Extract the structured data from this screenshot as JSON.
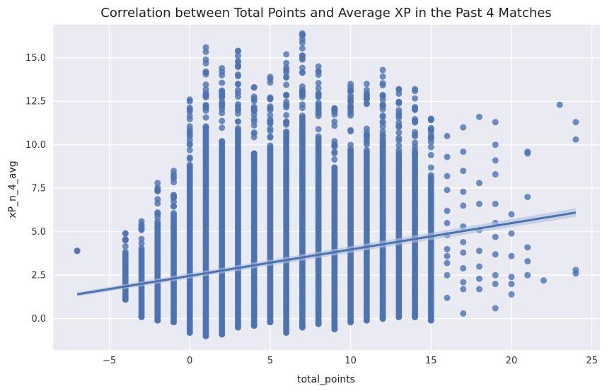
{
  "chart_data": {
    "type": "scatter",
    "title": "Correlation between Total Points and Average XP in the Past 4 Matches",
    "xlabel": "total_points",
    "ylabel": "xP_n_4_avg",
    "xlim": [
      -8.5,
      25.5
    ],
    "ylim": [
      -1.8,
      16.9
    ],
    "xticks": [
      -5,
      0,
      5,
      10,
      15,
      20,
      25
    ],
    "xtick_labels": [
      "−5",
      "0",
      "5",
      "10",
      "15",
      "20",
      "25"
    ],
    "yticks": [
      0.0,
      2.5,
      5.0,
      7.5,
      10.0,
      12.5,
      15.0
    ],
    "ytick_labels": [
      "0.0",
      "2.5",
      "5.0",
      "7.5",
      "10.0",
      "12.5",
      "15.0"
    ],
    "grid": true,
    "colors": {
      "background": "#EAEAF2",
      "grid": "#FFFFFF",
      "points": "#4C72B0",
      "regression_line": "#4C72B0",
      "ci_band": "#AFC0DE"
    },
    "regression": {
      "x": [
        -7,
        24
      ],
      "y": [
        1.4,
        6.1
      ]
    },
    "column_ranges": [
      {
        "x": -7,
        "min": 3.9,
        "max": 3.9
      },
      {
        "x": -4,
        "min": 1.1,
        "max": 4.9
      },
      {
        "x": -3,
        "min": 0.1,
        "max": 5.6
      },
      {
        "x": -2,
        "min": -0.1,
        "max": 7.8
      },
      {
        "x": -1,
        "min": -0.2,
        "max": 8.5
      },
      {
        "x": 0,
        "min": -0.8,
        "max": 12.6
      },
      {
        "x": 1,
        "min": -1.0,
        "max": 15.6
      },
      {
        "x": 2,
        "min": -0.9,
        "max": 14.4
      },
      {
        "x": 3,
        "min": -0.5,
        "max": 15.4
      },
      {
        "x": 4,
        "min": -0.4,
        "max": 13.3
      },
      {
        "x": 5,
        "min": -0.2,
        "max": 13.9
      },
      {
        "x": 6,
        "min": -0.8,
        "max": 15.2
      },
      {
        "x": 7,
        "min": -0.5,
        "max": 16.4
      },
      {
        "x": 8,
        "min": -0.3,
        "max": 14.5
      },
      {
        "x": 9,
        "min": -0.6,
        "max": 12.1
      },
      {
        "x": 10,
        "min": -0.2,
        "max": 13.5
      },
      {
        "x": 11,
        "min": -0.1,
        "max": 13.5
      },
      {
        "x": 12,
        "min": 0.0,
        "max": 14.3
      },
      {
        "x": 13,
        "min": 0.1,
        "max": 13.2
      },
      {
        "x": 14,
        "min": 0.1,
        "max": 13.2
      },
      {
        "x": 15,
        "min": -0.1,
        "max": 11.5
      }
    ],
    "sparse_points": [
      {
        "x": 16,
        "y": 10.5
      },
      {
        "x": 16,
        "y": 9.3
      },
      {
        "x": 16,
        "y": 8.2
      },
      {
        "x": 16,
        "y": 7.4
      },
      {
        "x": 16,
        "y": 6.2
      },
      {
        "x": 16,
        "y": 5.5
      },
      {
        "x": 16,
        "y": 4.8
      },
      {
        "x": 16,
        "y": 4.0
      },
      {
        "x": 16,
        "y": 3.2
      },
      {
        "x": 16,
        "y": 2.5
      },
      {
        "x": 16,
        "y": 1.2
      },
      {
        "x": 16,
        "y": 3.6
      },
      {
        "x": 17,
        "y": 11.0
      },
      {
        "x": 17,
        "y": 9.6
      },
      {
        "x": 17,
        "y": 8.5
      },
      {
        "x": 17,
        "y": 7.3
      },
      {
        "x": 17,
        "y": 6.5
      },
      {
        "x": 17,
        "y": 5.3
      },
      {
        "x": 17,
        "y": 4.4
      },
      {
        "x": 17,
        "y": 3.8
      },
      {
        "x": 17,
        "y": 2.9
      },
      {
        "x": 17,
        "y": 1.7
      },
      {
        "x": 17,
        "y": 0.3
      },
      {
        "x": 17,
        "y": 2.1
      },
      {
        "x": 18,
        "y": 11.6
      },
      {
        "x": 18,
        "y": 7.8
      },
      {
        "x": 18,
        "y": 6.6
      },
      {
        "x": 18,
        "y": 5.1
      },
      {
        "x": 18,
        "y": 3.9
      },
      {
        "x": 18,
        "y": 3.0
      },
      {
        "x": 18,
        "y": 2.3
      },
      {
        "x": 18,
        "y": 1.7
      },
      {
        "x": 19,
        "y": 11.3
      },
      {
        "x": 19,
        "y": 10.0
      },
      {
        "x": 19,
        "y": 9.1
      },
      {
        "x": 19,
        "y": 8.3
      },
      {
        "x": 19,
        "y": 6.6
      },
      {
        "x": 19,
        "y": 5.5
      },
      {
        "x": 19,
        "y": 4.7
      },
      {
        "x": 19,
        "y": 3.7
      },
      {
        "x": 19,
        "y": 2.5
      },
      {
        "x": 19,
        "y": 2.0
      },
      {
        "x": 19,
        "y": 0.6
      },
      {
        "x": 20,
        "y": 6.0
      },
      {
        "x": 20,
        "y": 4.9
      },
      {
        "x": 20,
        "y": 3.6
      },
      {
        "x": 20,
        "y": 2.4
      },
      {
        "x": 20,
        "y": 2.0
      },
      {
        "x": 20,
        "y": 1.4
      },
      {
        "x": 21,
        "y": 9.6
      },
      {
        "x": 21,
        "y": 9.5
      },
      {
        "x": 21,
        "y": 7.0
      },
      {
        "x": 21,
        "y": 4.1
      },
      {
        "x": 21,
        "y": 3.3
      },
      {
        "x": 21,
        "y": 2.5
      },
      {
        "x": 22,
        "y": 2.2
      },
      {
        "x": 23,
        "y": 12.3
      },
      {
        "x": 24,
        "y": 11.3
      },
      {
        "x": 24,
        "y": 10.3
      },
      {
        "x": 24,
        "y": 2.8
      },
      {
        "x": 24,
        "y": 2.6
      }
    ]
  }
}
